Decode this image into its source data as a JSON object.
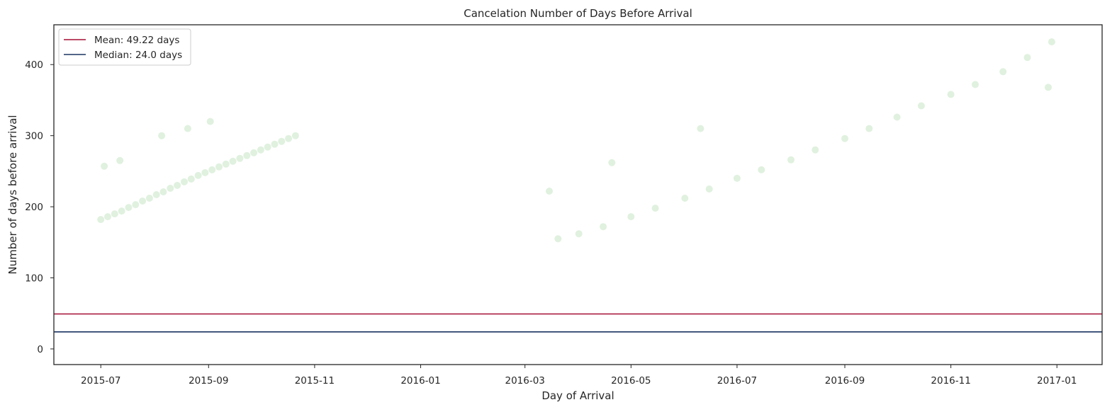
{
  "chart_data": {
    "type": "scatter",
    "title": "Cancelation Number of Days Before Arrival",
    "xlabel": "Day of Arrival",
    "ylabel": "Number of days before arrival",
    "xlim": [
      "2015-06-04",
      "2017-01-27"
    ],
    "ylim": [
      -22,
      456
    ],
    "x_ticks": [
      "2015-07",
      "2015-09",
      "2015-11",
      "2016-01",
      "2016-03",
      "2016-05",
      "2016-07",
      "2016-09",
      "2016-11",
      "2017-01"
    ],
    "y_ticks": [
      0,
      100,
      200,
      300,
      400
    ],
    "grid": false,
    "legend_placement": "top-left",
    "point_color": "#4daf4a",
    "point_alpha": 0.08,
    "reference_lines": [
      {
        "name": "Mean: 49.22 days",
        "value": 49.22,
        "color": "#a50f35"
      },
      {
        "name": "Median: 24.0 days",
        "value": 24.0,
        "color": "#1a3361"
      }
    ],
    "series": [
      {
        "points": [
          [
            "2015-07-01",
            182
          ],
          [
            "2015-07-05",
            186
          ],
          [
            "2015-07-09",
            190
          ],
          [
            "2015-07-13",
            194
          ],
          [
            "2015-07-17",
            199
          ],
          [
            "2015-07-21",
            203
          ],
          [
            "2015-07-25",
            208
          ],
          [
            "2015-07-29",
            212
          ],
          [
            "2015-08-02",
            217
          ],
          [
            "2015-08-06",
            221
          ],
          [
            "2015-08-10",
            226
          ],
          [
            "2015-08-14",
            230
          ],
          [
            "2015-08-18",
            235
          ],
          [
            "2015-08-22",
            239
          ],
          [
            "2015-08-26",
            244
          ],
          [
            "2015-08-30",
            248
          ],
          [
            "2015-09-03",
            252
          ],
          [
            "2015-09-07",
            256
          ],
          [
            "2015-09-11",
            260
          ],
          [
            "2015-09-15",
            264
          ],
          [
            "2015-09-19",
            268
          ],
          [
            "2015-09-23",
            272
          ],
          [
            "2015-09-27",
            276
          ],
          [
            "2015-10-01",
            280
          ],
          [
            "2015-10-05",
            284
          ],
          [
            "2015-10-09",
            288
          ],
          [
            "2015-10-13",
            292
          ],
          [
            "2015-10-17",
            296
          ],
          [
            "2015-10-21",
            300
          ],
          [
            "2015-07-03",
            257
          ],
          [
            "2015-07-12",
            265
          ],
          [
            "2015-08-05",
            300
          ],
          [
            "2015-08-20",
            310
          ],
          [
            "2015-09-02",
            320
          ],
          [
            "2016-03-20",
            155
          ],
          [
            "2016-04-01",
            162
          ],
          [
            "2016-04-15",
            172
          ],
          [
            "2016-05-01",
            186
          ],
          [
            "2016-05-15",
            198
          ],
          [
            "2016-06-01",
            212
          ],
          [
            "2016-06-15",
            225
          ],
          [
            "2016-07-01",
            240
          ],
          [
            "2016-07-15",
            252
          ],
          [
            "2016-08-01",
            266
          ],
          [
            "2016-08-15",
            280
          ],
          [
            "2016-09-01",
            296
          ],
          [
            "2016-09-15",
            310
          ],
          [
            "2016-10-01",
            326
          ],
          [
            "2016-10-15",
            342
          ],
          [
            "2016-11-01",
            358
          ],
          [
            "2016-11-15",
            372
          ],
          [
            "2016-12-01",
            390
          ],
          [
            "2016-12-15",
            410
          ],
          [
            "2016-12-29",
            432
          ],
          [
            "2016-06-10",
            310
          ],
          [
            "2016-12-27",
            368
          ],
          [
            "2016-04-20",
            262
          ],
          [
            "2016-03-15",
            222
          ]
        ]
      }
    ]
  }
}
